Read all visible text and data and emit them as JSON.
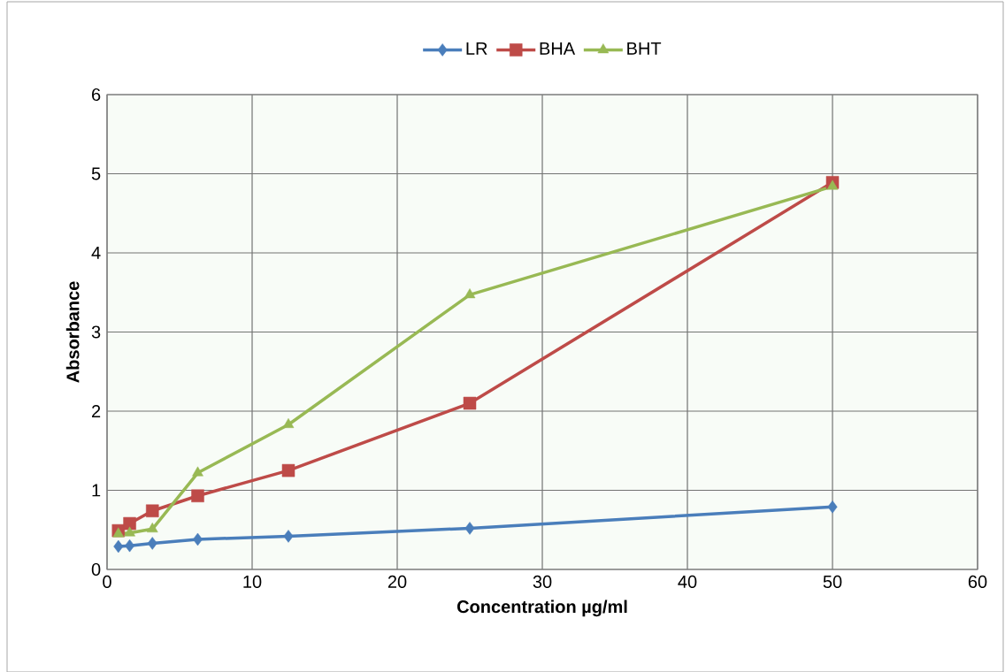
{
  "chart_data": {
    "type": "line",
    "xlabel": "Concentration µg/ml",
    "ylabel": "Absorbance",
    "x": [
      0.78,
      1.56,
      3.125,
      6.25,
      12.5,
      25,
      50
    ],
    "series": [
      {
        "name": "LR",
        "color": "#4a7ebb",
        "marker": "diamond",
        "values": [
          0.29,
          0.3,
          0.33,
          0.38,
          0.42,
          0.52,
          0.79
        ]
      },
      {
        "name": "BHA",
        "color": "#be4b48",
        "marker": "square",
        "values": [
          0.49,
          0.58,
          0.74,
          0.93,
          1.25,
          2.1,
          4.89
        ]
      },
      {
        "name": "BHT",
        "color": "#98b954",
        "marker": "triangle",
        "values": [
          0.45,
          0.46,
          0.51,
          1.22,
          1.83,
          3.47,
          4.84
        ]
      }
    ],
    "xlim": [
      0,
      60
    ],
    "ylim": [
      0,
      6
    ],
    "xticks": [
      0,
      10,
      20,
      30,
      40,
      50,
      60
    ],
    "yticks": [
      0,
      1,
      2,
      3,
      4,
      5,
      6
    ],
    "grid": true,
    "legend": "top",
    "line_style": "solid"
  }
}
